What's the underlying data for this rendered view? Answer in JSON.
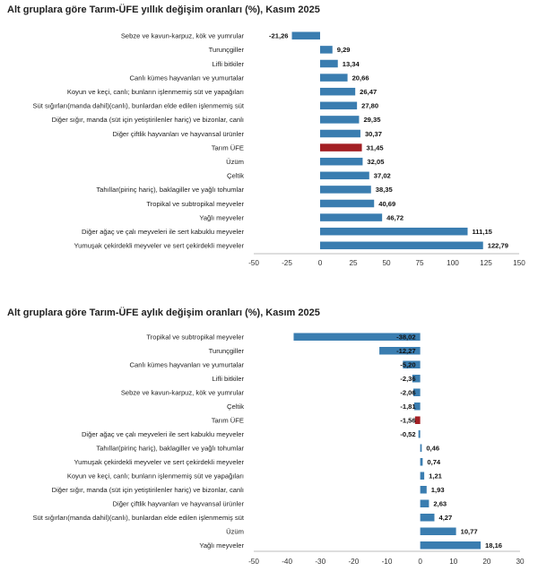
{
  "chart_data": [
    {
      "type": "bar",
      "orientation": "horizontal",
      "title": "Alt gruplara göre Tarım-ÜFE yıllık değişim oranları (%), Kasım 2025",
      "categories": [
        "Sebze ve kavun-karpuz, kök ve yumrular",
        "Turunçgiller",
        "Lifli bitkiler",
        "Canlı kümes hayvanları ve yumurtalar",
        "Koyun ve keçi, canlı; bunların işlenmemiş süt ve yapağıları",
        "Süt sığırları(manda dahil)(canlı), bunlardan elde edilen işlenmemiş süt",
        "Diğer sığır, manda (süt için yetiştirilenler hariç) ve bizonlar, canlı",
        "Diğer çiftlik hayvanları ve hayvansal ürünler",
        "Tarım ÜFE",
        "Üzüm",
        "Çeltik",
        "Tahıllar(pirinç hariç), baklagiller ve yağlı tohumlar",
        "Tropikal ve subtropikal meyveler",
        "Yağlı meyveler",
        "Diğer ağaç ve çalı meyveleri ile sert kabuklu meyveler",
        "Yumuşak çekirdekli meyveler ve sert çekirdekli meyveler"
      ],
      "values": [
        -21.26,
        9.29,
        13.34,
        20.66,
        26.47,
        27.8,
        29.35,
        30.37,
        31.45,
        32.05,
        37.02,
        38.35,
        40.69,
        46.72,
        111.15,
        122.79
      ],
      "labels": [
        "-21,26",
        "9,29",
        "13,34",
        "20,66",
        "26,47",
        "27,80",
        "29,35",
        "30,37",
        "31,45",
        "32,05",
        "37,02",
        "38,35",
        "40,69",
        "46,72",
        "111,15",
        "122,79"
      ],
      "highlight": "Tarım ÜFE",
      "xlim": [
        -50,
        150
      ],
      "ticks": [
        -50,
        -25,
        0,
        25,
        50,
        75,
        100,
        125,
        150
      ],
      "xlabel": "",
      "ylabel": "",
      "grid": false
    },
    {
      "type": "bar",
      "orientation": "horizontal",
      "title": "Alt gruplara göre Tarım-ÜFE aylık değişim oranları (%), Kasım 2025",
      "categories": [
        "Tropikal ve subtropikal meyveler",
        "Turunçgiller",
        "Canlı kümes hayvanları ve yumurtalar",
        "Lifli bitkiler",
        "Sebze ve kavun-karpuz, kök ve yumrular",
        "Çeltik",
        "Tarım ÜFE",
        "Diğer ağaç ve çalı meyveleri ile sert kabuklu meyveler",
        "Tahıllar(pirinç hariç), baklagiller ve yağlı tohumlar",
        "Yumuşak çekirdekli meyveler ve sert çekirdekli meyveler",
        "Koyun ve keçi, canlı; bunların işlenmemiş süt ve yapağıları",
        "Diğer sığır, manda (süt için yetiştirilenler hariç) ve bizonlar, canlı",
        "Diğer çiftlik hayvanları ve hayvansal ürünler",
        "Süt sığırları(manda dahil)(canlı), bunlardan elde edilen işlenmemiş süt",
        "Üzüm",
        "Yağlı meyveler"
      ],
      "values": [
        -38.02,
        -12.27,
        -5.2,
        -2.36,
        -2.06,
        -1.81,
        -1.56,
        -0.52,
        0.46,
        0.74,
        1.21,
        1.93,
        2.63,
        4.27,
        10.77,
        18.16
      ],
      "labels": [
        "-38,02",
        "-12,27",
        "-5,20",
        "-2,36",
        "-2,06",
        "-1,81",
        "-1,56",
        "-0,52",
        "0,46",
        "0,74",
        "1,21",
        "1,93",
        "2,63",
        "4,27",
        "10,77",
        "18,16"
      ],
      "highlight": "Tarım ÜFE",
      "xlim": [
        -50,
        30
      ],
      "ticks": [
        -50,
        -40,
        -30,
        -20,
        -10,
        0,
        10,
        20,
        30
      ],
      "xlabel": "",
      "ylabel": "",
      "grid": false
    }
  ],
  "colors": {
    "bar": "#3a7db0",
    "highlight": "#a31f24",
    "axis": "#bdbdbd"
  }
}
